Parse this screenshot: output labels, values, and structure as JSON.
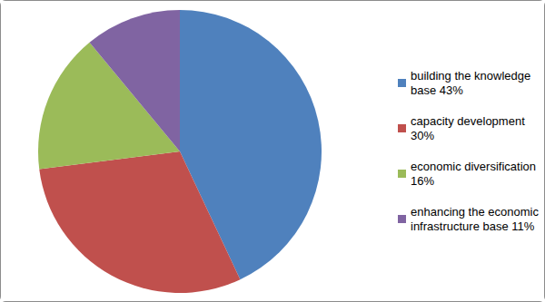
{
  "chart_data": {
    "type": "pie",
    "categories": [
      "building the knowledge base 43%",
      "capacity development 30%",
      "economic diversification 16%",
      "enhancing the economic infrastructure base 11%"
    ],
    "values": [
      43,
      30,
      16,
      11
    ],
    "colors": [
      "#4f81bd",
      "#c0504d",
      "#9bbb59",
      "#8064a2"
    ],
    "legend": "right"
  }
}
